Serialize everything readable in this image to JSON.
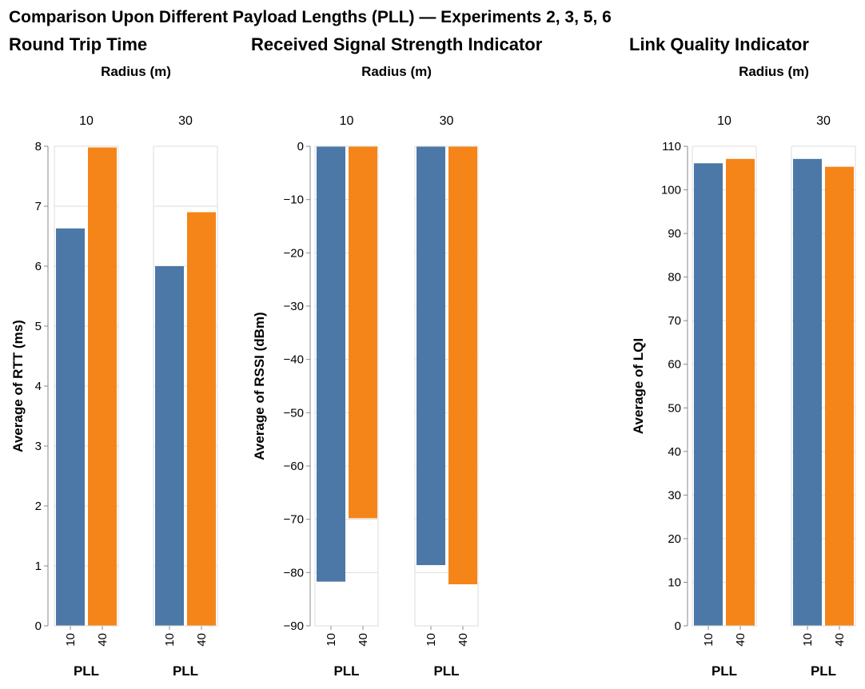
{
  "title": "Comparison Upon Different Payload Lengths (PLL) — Experiments 2, 3, 5, 6",
  "colors": {
    "pll_10": "#4c78a8",
    "pll_40": "#f58518"
  },
  "chart_data": [
    {
      "type": "bar",
      "title": "Round Trip Time",
      "facet_header": "Radius (m)",
      "facets": [
        "10",
        "30"
      ],
      "xlabel": "PLL",
      "categories": [
        "10",
        "40"
      ],
      "ylabel": "Average of RTT (ms)",
      "ylim": [
        0,
        8
      ],
      "yticks": [
        0,
        1,
        2,
        3,
        4,
        5,
        6,
        7,
        8
      ],
      "grid": true,
      "values": [
        [
          6.63,
          7.98
        ],
        [
          6.0,
          6.9
        ]
      ]
    },
    {
      "type": "bar",
      "title": "Received Signal Strength Indicator",
      "facet_header": "Radius (m)",
      "facets": [
        "10",
        "30"
      ],
      "xlabel": "PLL",
      "categories": [
        "10",
        "40"
      ],
      "ylabel": "Average of RSSI (dBm)",
      "ylim": [
        -90,
        0
      ],
      "yticks": [
        0,
        -10,
        -20,
        -30,
        -40,
        -50,
        -60,
        -70,
        -80,
        -90
      ],
      "grid": true,
      "values": [
        [
          -81.7,
          -69.8
        ],
        [
          -78.6,
          -82.2
        ]
      ]
    },
    {
      "type": "bar",
      "title": "Link Quality Indicator",
      "facet_header": "Radius (m)",
      "facets": [
        "10",
        "30"
      ],
      "xlabel": "PLL",
      "categories": [
        "10",
        "40"
      ],
      "ylabel": "Average of LQI",
      "ylim": [
        0,
        110
      ],
      "yticks": [
        0,
        10,
        20,
        30,
        40,
        50,
        60,
        70,
        80,
        90,
        100,
        110
      ],
      "grid": true,
      "values": [
        [
          106.1,
          107.1
        ],
        [
          107.1,
          105.3
        ]
      ]
    }
  ]
}
